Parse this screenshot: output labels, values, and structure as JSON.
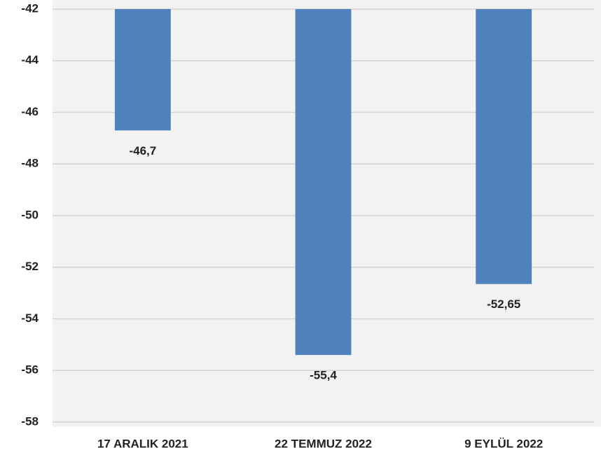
{
  "chart_data": {
    "type": "bar",
    "categories": [
      "17 ARALIK 2021",
      "22 TEMMUZ 2022",
      "9 EYLÜL 2022"
    ],
    "values": [
      -46.7,
      -55.4,
      -52.65
    ],
    "value_labels": [
      "-46,7",
      "-55,4",
      "-52,65"
    ],
    "color": "#4f81bd",
    "ylim": [
      -58,
      -42
    ],
    "yticks": [
      -42,
      -44,
      -46,
      -48,
      -50,
      -52,
      -54,
      -56,
      -58
    ],
    "grid": true
  }
}
